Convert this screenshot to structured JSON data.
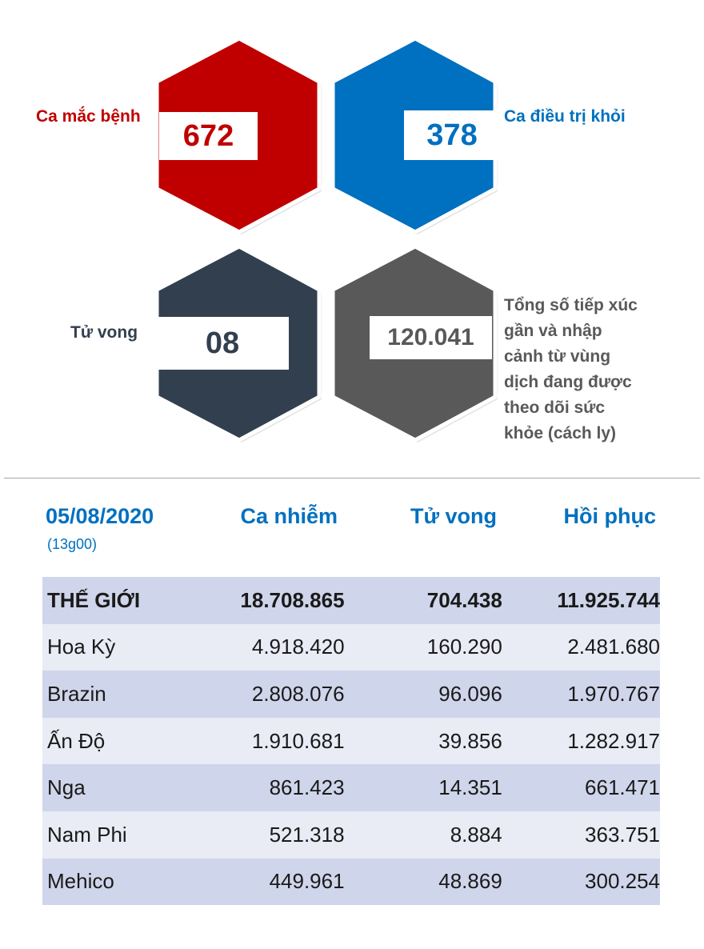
{
  "colors": {
    "red": "#c00000",
    "blue": "#0070c0",
    "navy": "#323f4f",
    "gray": "#595959",
    "row_dark": "#cfd5ea",
    "row_light": "#e9ebf5"
  },
  "stats": {
    "cases": {
      "label": "Ca mắc bệnh",
      "value": "672"
    },
    "recovered": {
      "label": "Ca điều trị khỏi",
      "value": "378"
    },
    "deaths": {
      "label": "Tử vong",
      "value": "08"
    },
    "monitored": {
      "label_lines": [
        "Tổng số tiếp xúc",
        "gần và nhập",
        "cảnh từ vùng",
        "dịch đang được",
        "theo dõi sức",
        "khỏe (cách ly)"
      ],
      "value": "120.041"
    }
  },
  "table": {
    "date": "05/08/2020",
    "time": "(13g00)",
    "headers": [
      "Ca nhiễm",
      "Tử vong",
      "Hồi phục"
    ],
    "rows": [
      [
        "THẾ GIỚI",
        "18.708.865",
        "704.438",
        "11.925.744"
      ],
      [
        "Hoa Kỳ",
        "4.918.420",
        "160.290",
        "2.481.680"
      ],
      [
        "Brazin",
        "2.808.076",
        "96.096",
        "1.970.767"
      ],
      [
        "Ấn Độ",
        "1.910.681",
        "39.856",
        "1.282.917"
      ],
      [
        "Nga",
        "861.423",
        "14.351",
        "661.471"
      ],
      [
        "Nam Phi",
        "521.318",
        "8.884",
        "363.751"
      ],
      [
        "Mehico",
        "449.961",
        "48.869",
        "300.254"
      ]
    ]
  }
}
